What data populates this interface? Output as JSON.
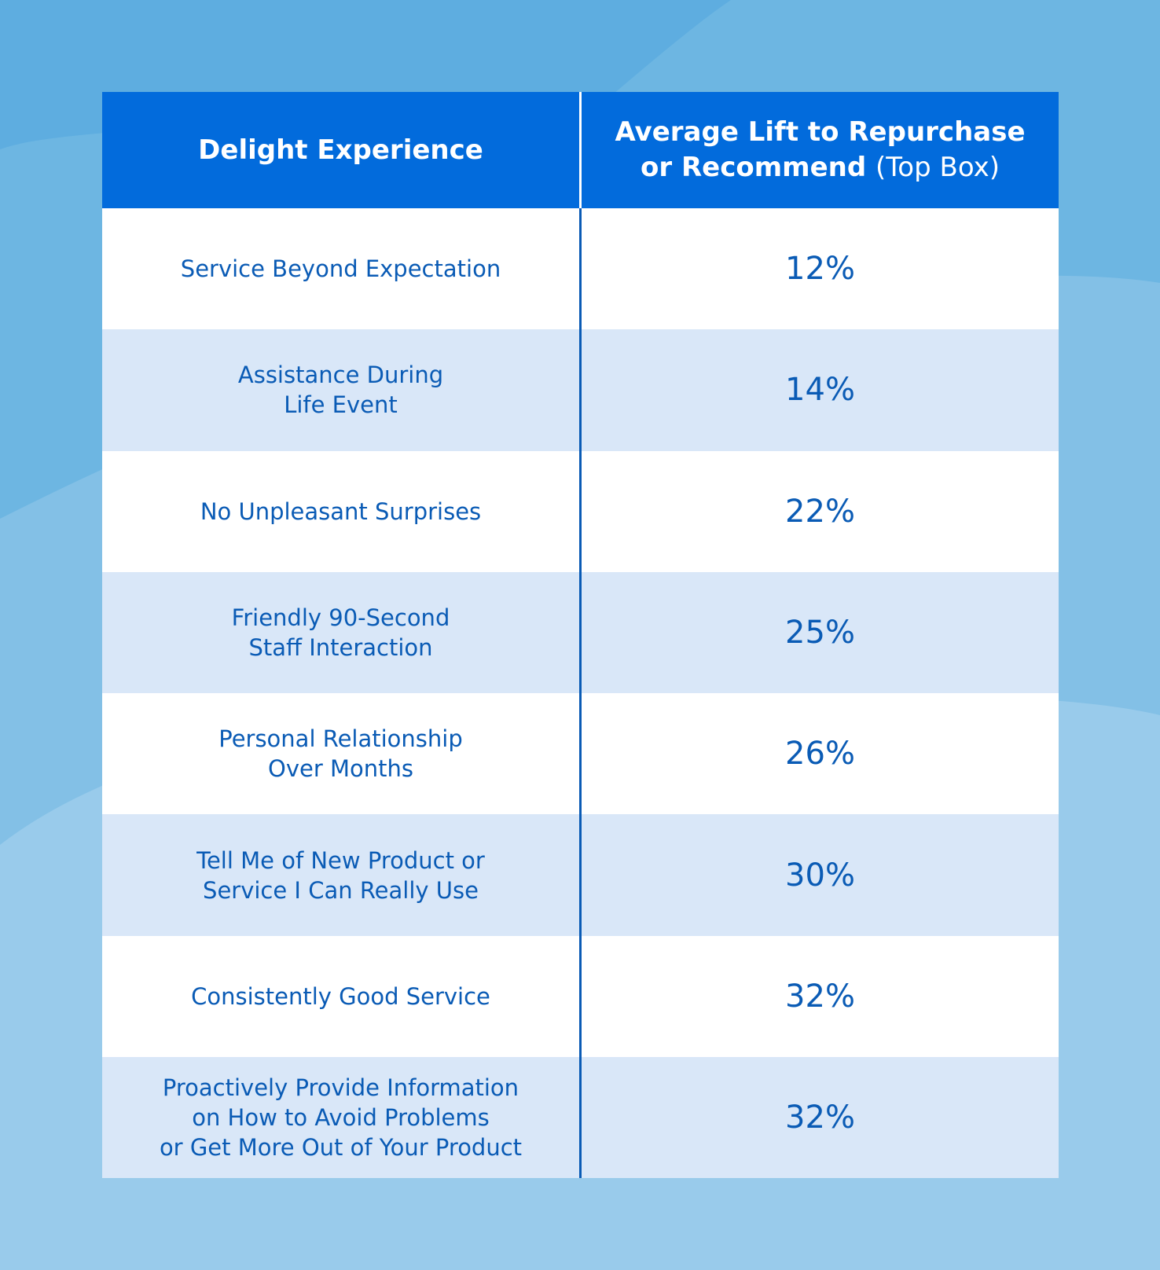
{
  "colors": {
    "header_bg": "#026bdc",
    "text": "#0a5bb5",
    "row_alt": "#d9e7f8",
    "row_plain": "#ffffff",
    "background": "#62aee0"
  },
  "header": {
    "col1": "Delight Experience",
    "col2_line1": "Average Lift to Repurchase",
    "col2_line2_bold": "or Recommend",
    "col2_line2_light": "(Top Box)"
  },
  "rows": [
    {
      "experience": "Service Beyond Expectation",
      "lift": "12%"
    },
    {
      "experience": "Assistance During\nLife Event",
      "lift": "14%"
    },
    {
      "experience": "No Unpleasant Surprises",
      "lift": "22%"
    },
    {
      "experience": "Friendly 90-Second\nStaff Interaction",
      "lift": "25%"
    },
    {
      "experience": "Personal Relationship\nOver Months",
      "lift": "26%"
    },
    {
      "experience": "Tell Me of New Product or\nService I Can Really Use",
      "lift": "30%"
    },
    {
      "experience": "Consistently Good Service",
      "lift": "32%"
    },
    {
      "experience": "Proactively Provide Information\non How to Avoid Problems\nor Get More Out of Your Product",
      "lift": "32%"
    }
  ]
}
